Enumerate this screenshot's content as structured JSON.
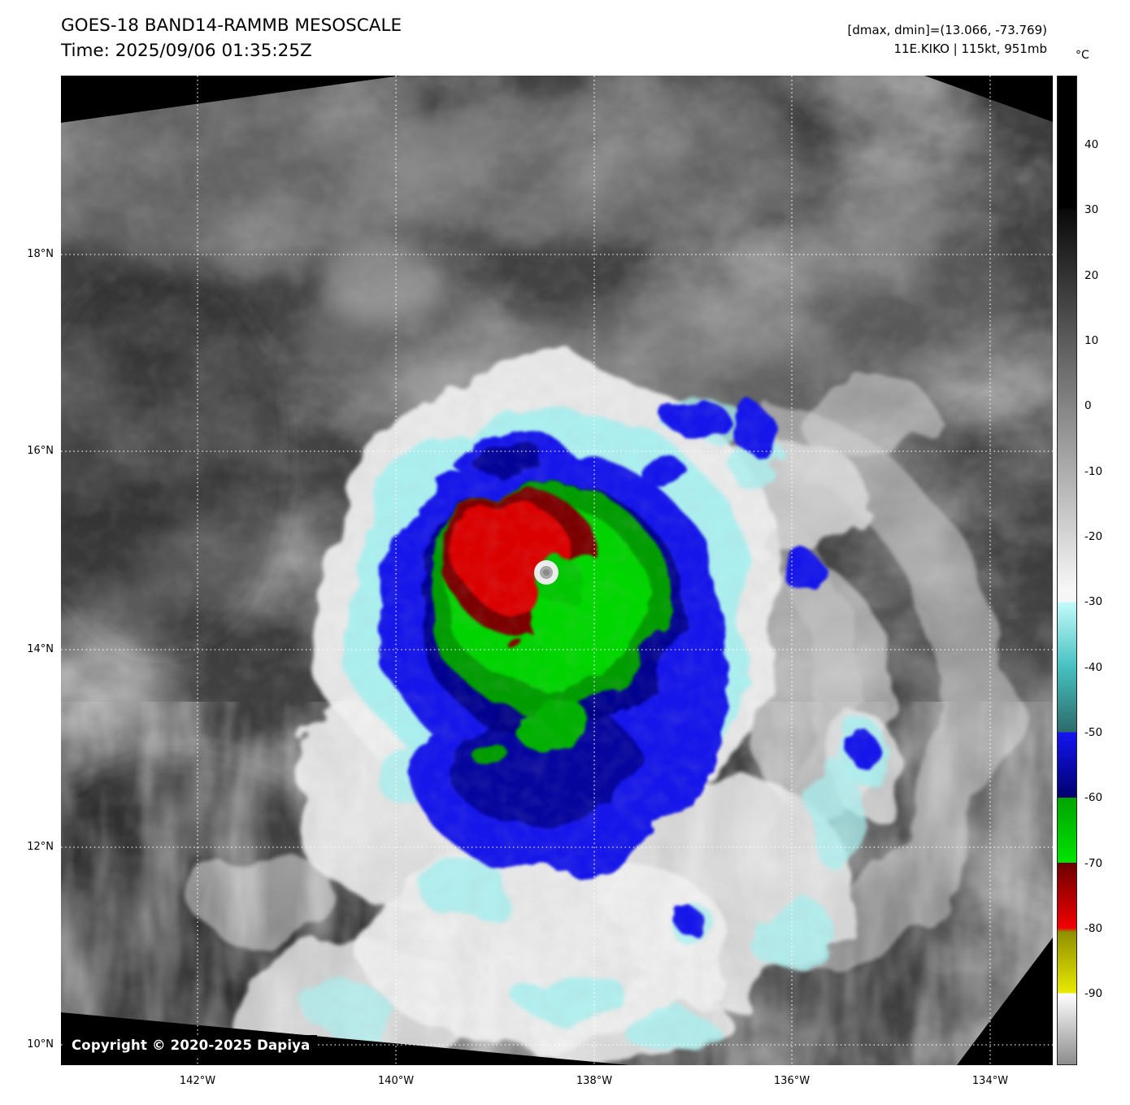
{
  "header": {
    "title": "GOES-18 BAND14-RAMMB MESOSCALE",
    "time_label": "Time: 2025/09/06 01:35:25Z",
    "dmax_dmin": "[dmax, dmin]=(13.066, -73.769)",
    "storm_info": "11E.KIKO | 115kt, 951mb"
  },
  "colorbar": {
    "unit": "°C",
    "ticks": [
      40,
      30,
      20,
      10,
      0,
      -10,
      -20,
      -30,
      -40,
      -50,
      -60,
      -70,
      -80,
      -90
    ],
    "palette": [
      {
        "at": 50.6,
        "color": "#000000"
      },
      {
        "at": 30.5,
        "color": "#000000"
      },
      {
        "at": 30.0,
        "color": "#0a0a0a"
      },
      {
        "at": -28.0,
        "color": "#f6f6f6"
      },
      {
        "at": -30.0,
        "color": "#f6f6f6"
      },
      {
        "at": -30.01,
        "color": "#c4fbfb"
      },
      {
        "at": -40.0,
        "color": "#46c0c0"
      },
      {
        "at": -49.99,
        "color": "#2d6a6a"
      },
      {
        "at": -50.0,
        "color": "#1515f2"
      },
      {
        "at": -59.99,
        "color": "#00006e"
      },
      {
        "at": -60.0,
        "color": "#00a400"
      },
      {
        "at": -69.99,
        "color": "#00e400"
      },
      {
        "at": -70.0,
        "color": "#6b0000"
      },
      {
        "at": -79.99,
        "color": "#f20000"
      },
      {
        "at": -80.6,
        "color": "#8f8f00"
      },
      {
        "at": -90.0,
        "color": "#eaea00"
      },
      {
        "at": -90.01,
        "color": "#ffffff"
      },
      {
        "at": -100.9,
        "color": "#8c8c8c"
      }
    ]
  },
  "map": {
    "lat_labels": [
      "18°N",
      "16°N",
      "14°N",
      "12°N",
      "10°N"
    ],
    "lon_labels": [
      "142°W",
      "140°W",
      "138°W",
      "136°W",
      "134°W"
    ],
    "copyright": "Copyright © 2020-2025 Dapiya"
  }
}
